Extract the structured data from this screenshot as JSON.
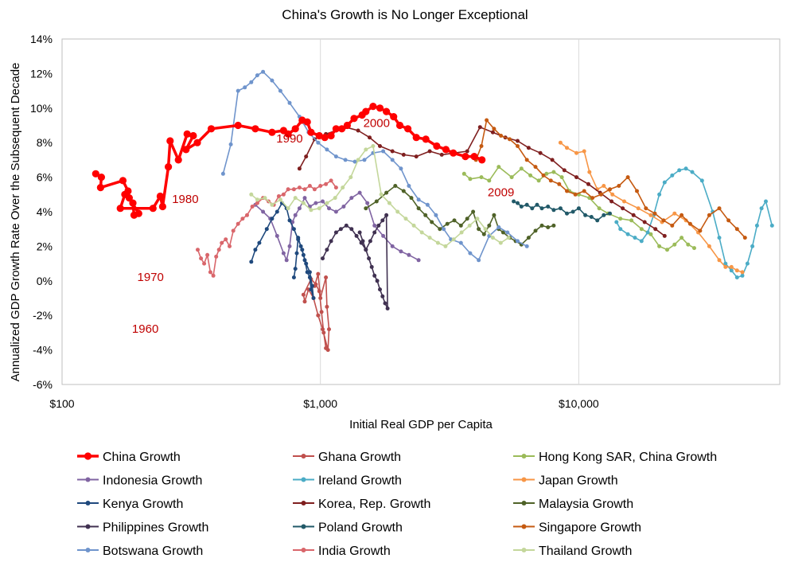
{
  "chart_data": {
    "type": "line",
    "title": "China's Growth is No Longer Exceptional",
    "xlabel": "Initial Real GDP per Capita",
    "ylabel": "Annualized GDP Growth Rate Over the Subsequent Decade",
    "x_scale": "log",
    "xlim": [
      100,
      60000
    ],
    "ylim": [
      -6,
      14
    ],
    "x_ticks": [
      {
        "value": 100,
        "label": "$100"
      },
      {
        "value": 1000,
        "label": "$1,000"
      },
      {
        "value": 10000,
        "label": "$10,000"
      }
    ],
    "y_ticks": [
      {
        "value": 14,
        "label": "14%"
      },
      {
        "value": 12,
        "label": "12%"
      },
      {
        "value": 10,
        "label": "10%"
      },
      {
        "value": 8,
        "label": "8%"
      },
      {
        "value": 6,
        "label": "6%"
      },
      {
        "value": 4,
        "label": "4%"
      },
      {
        "value": 2,
        "label": "2%"
      },
      {
        "value": 0,
        "label": "0%"
      },
      {
        "value": -2,
        "label": "-2%"
      },
      {
        "value": -4,
        "label": "-4%"
      },
      {
        "value": -6,
        "label": "-6%"
      }
    ],
    "grid": "vertical at x ticks",
    "legend_position": "bottom",
    "annotations": [
      {
        "text": "1960",
        "x": 210,
        "y": -3.0
      },
      {
        "text": "1970",
        "x": 220,
        "y": 0.0
      },
      {
        "text": "1980",
        "x": 300,
        "y": 4.5
      },
      {
        "text": "1990",
        "x": 760,
        "y": 8.0
      },
      {
        "text": "2000",
        "x": 1650,
        "y": 8.9
      },
      {
        "text": "2009",
        "x": 5000,
        "y": 4.9
      }
    ],
    "series": [
      {
        "name": "China Growth",
        "color": "#ff0000",
        "highlight": true,
        "x": [
          135,
          142,
          141,
          172,
          180,
          182,
          198,
          190,
          188,
          175,
          168,
          225,
          240,
          245,
          258,
          262,
          282,
          305,
          322,
          302,
          334,
          378,
          480,
          560,
          650,
          720,
          750,
          800,
          850,
          890,
          920,
          990,
          1040,
          1100,
          1150,
          1210,
          1270,
          1350,
          1450,
          1500,
          1600,
          1700,
          1800,
          1920,
          2030,
          2180,
          2350,
          2560,
          2820,
          3060,
          3270,
          3640,
          3940,
          4220
        ],
        "y": [
          6.2,
          6.0,
          5.4,
          5.8,
          5.2,
          4.8,
          3.9,
          3.8,
          4.5,
          5.0,
          4.2,
          4.2,
          4.9,
          4.3,
          6.6,
          8.1,
          7.0,
          8.5,
          8.4,
          7.6,
          8.0,
          8.8,
          9.0,
          8.8,
          8.6,
          8.7,
          8.5,
          8.8,
          9.3,
          9.2,
          8.6,
          8.4,
          8.3,
          8.4,
          8.8,
          8.8,
          9.0,
          9.4,
          9.6,
          9.8,
          10.1,
          10.0,
          9.8,
          9.5,
          9.0,
          8.8,
          8.3,
          8.2,
          7.8,
          7.6,
          7.4,
          7.2,
          7.2,
          7.0
        ]
      },
      {
        "name": "Ghana Growth",
        "color": "#c0504d",
        "x": [
          950,
          980,
          1000,
          1050,
          1060,
          1080,
          1070,
          1020,
          980,
          940,
          900,
          870,
          860,
          920,
          960,
          990,
          1010,
          1030,
          1050
        ],
        "y": [
          -0.3,
          0.4,
          -1.0,
          0.2,
          -1.5,
          -2.8,
          -4.0,
          -2.8,
          -2.0,
          -1.0,
          -0.5,
          -1.2,
          -0.8,
          0.1,
          -0.2,
          -0.6,
          -1.8,
          -3.0,
          -3.9
        ]
      },
      {
        "name": "Hong Kong SAR, China Growth",
        "color": "#9bbb59",
        "x": [
          3600,
          3800,
          4200,
          4500,
          4900,
          5500,
          6000,
          6500,
          7000,
          7500,
          8000,
          8600,
          9200,
          10000,
          11000,
          12000,
          13000,
          14500,
          16000,
          17500,
          19000,
          20500,
          22000,
          23500,
          25000,
          26500,
          28000
        ],
        "y": [
          6.2,
          5.9,
          6.0,
          5.8,
          6.6,
          6.0,
          6.5,
          6.1,
          5.8,
          6.2,
          6.3,
          6.0,
          5.2,
          5.0,
          4.8,
          4.2,
          3.9,
          3.6,
          3.5,
          3.0,
          2.7,
          2.0,
          1.8,
          2.1,
          2.5,
          2.1,
          1.9
        ]
      },
      {
        "name": "Indonesia Growth",
        "color": "#8064a2",
        "x": [
          560,
          600,
          640,
          680,
          720,
          740,
          760,
          780,
          800,
          830,
          870,
          910,
          960,
          1020,
          1080,
          1150,
          1230,
          1320,
          1420,
          1520,
          1620,
          1750,
          1900,
          2050,
          2200,
          2400
        ],
        "y": [
          4.4,
          4.0,
          3.6,
          2.6,
          1.6,
          1.2,
          2.0,
          3.4,
          3.8,
          4.2,
          4.8,
          4.3,
          4.5,
          4.6,
          4.2,
          4.0,
          4.3,
          4.8,
          5.1,
          4.5,
          3.2,
          2.6,
          2.0,
          1.7,
          1.5,
          1.2
        ]
      },
      {
        "name": "Ireland Growth",
        "color": "#4bacc6",
        "x": [
          14000,
          14500,
          15500,
          16500,
          17500,
          18500,
          19500,
          20500,
          21500,
          23000,
          24500,
          26000,
          27500,
          30000,
          33000,
          35000,
          37000,
          39000,
          41000,
          43000,
          45000,
          47000,
          49000,
          51000,
          53000,
          56000
        ],
        "y": [
          3.4,
          3.0,
          2.7,
          2.5,
          2.3,
          2.8,
          3.8,
          5.0,
          5.7,
          6.1,
          6.4,
          6.5,
          6.3,
          5.8,
          4.0,
          2.5,
          1.0,
          0.6,
          0.2,
          0.3,
          1.0,
          2.0,
          3.2,
          4.2,
          4.6,
          3.2
        ]
      },
      {
        "name": "Japan Growth",
        "color": "#f79646",
        "x": [
          8500,
          9000,
          9800,
          10500,
          11000,
          11800,
          12500,
          13500,
          15000,
          17000,
          19000,
          21000,
          23500,
          26000,
          29000,
          32000,
          35000,
          37000,
          39000,
          41000,
          43000
        ],
        "y": [
          8.0,
          7.7,
          7.4,
          7.5,
          6.3,
          5.3,
          5.5,
          5.0,
          4.6,
          4.2,
          3.8,
          3.4,
          3.9,
          3.5,
          2.8,
          2.0,
          1.2,
          0.8,
          0.8,
          0.6,
          0.5
        ]
      },
      {
        "name": "Kenya Growth",
        "color": "#1f497d",
        "x": [
          540,
          560,
          580,
          620,
          650,
          680,
          710,
          740,
          760,
          790,
          820,
          850,
          870,
          890,
          910,
          920,
          940,
          930,
          910,
          880,
          860,
          840,
          820,
          810,
          800,
          790
        ],
        "y": [
          1.1,
          1.8,
          2.2,
          3.0,
          3.6,
          4.0,
          4.5,
          4.2,
          3.5,
          3.0,
          2.4,
          1.8,
          1.2,
          0.5,
          0.2,
          -0.5,
          -1.0,
          -0.3,
          0.5,
          1.0,
          1.5,
          2.0,
          2.5,
          1.6,
          0.7,
          0.2
        ]
      },
      {
        "name": "Korea, Rep. Growth",
        "color": "#7f1f1f",
        "x": [
          830,
          880,
          950,
          1050,
          1150,
          1250,
          1400,
          1550,
          1700,
          1900,
          2100,
          2350,
          2650,
          2950,
          3300,
          3700,
          4150,
          4650,
          5200,
          5800,
          6400,
          7100,
          7900,
          8800,
          9800,
          10900,
          12100,
          13400,
          14800,
          16300,
          18000,
          19800,
          21500
        ],
        "y": [
          6.5,
          7.2,
          8.2,
          8.5,
          8.7,
          8.9,
          8.7,
          8.3,
          7.8,
          7.5,
          7.3,
          7.2,
          7.5,
          7.3,
          7.4,
          7.5,
          8.9,
          8.6,
          8.3,
          8.1,
          7.7,
          7.4,
          7.0,
          6.4,
          6.0,
          5.6,
          5.1,
          4.6,
          4.2,
          3.8,
          3.4,
          3.0,
          2.6
        ]
      },
      {
        "name": "Malaysia Growth",
        "color": "#4f6228",
        "x": [
          1500,
          1650,
          1800,
          1950,
          2100,
          2250,
          2400,
          2550,
          2700,
          2900,
          3100,
          3300,
          3500,
          3700,
          3900,
          4100,
          4300,
          4500,
          4700,
          4900,
          5100,
          5400,
          5700,
          6000,
          6400,
          6800,
          7200,
          7600,
          8000
        ],
        "y": [
          4.2,
          4.6,
          5.1,
          5.5,
          5.2,
          4.8,
          4.2,
          3.8,
          3.4,
          3.0,
          3.3,
          3.5,
          3.2,
          3.6,
          4.0,
          3.0,
          2.7,
          3.2,
          3.8,
          3.0,
          2.8,
          2.5,
          2.3,
          2.1,
          2.5,
          2.9,
          3.2,
          3.1,
          3.2
        ]
      },
      {
        "name": "Philippines Growth",
        "color": "#403151",
        "x": [
          1020,
          1060,
          1100,
          1150,
          1200,
          1260,
          1320,
          1380,
          1440,
          1500,
          1560,
          1620,
          1680,
          1740,
          1800,
          1820,
          1780,
          1740,
          1700,
          1660,
          1620,
          1580,
          1540,
          1500,
          1460,
          1420
        ],
        "y": [
          1.3,
          1.8,
          2.3,
          2.8,
          3.0,
          3.2,
          3.0,
          2.6,
          2.2,
          1.8,
          2.3,
          2.8,
          3.2,
          3.5,
          3.8,
          -1.6,
          -1.3,
          -0.9,
          -0.5,
          0.0,
          0.3,
          0.8,
          1.3,
          1.8,
          2.3,
          2.8
        ]
      },
      {
        "name": "Poland Growth",
        "color": "#215968",
        "x": [
          5600,
          5800,
          6000,
          6300,
          6600,
          6900,
          7200,
          7600,
          8000,
          8500,
          9000,
          9500,
          10000,
          10600,
          11200,
          11800,
          12500,
          13200
        ],
        "y": [
          4.6,
          4.5,
          4.3,
          4.4,
          4.2,
          4.4,
          4.2,
          4.3,
          4.1,
          4.2,
          3.9,
          4.0,
          4.2,
          3.8,
          3.7,
          3.5,
          3.8,
          3.9
        ]
      },
      {
        "name": "Singapore Growth",
        "color": "#c55a11",
        "x": [
          4000,
          4200,
          4400,
          4700,
          5000,
          5400,
          5800,
          6300,
          6800,
          7300,
          7800,
          8400,
          9000,
          9700,
          10500,
          11300,
          12200,
          13200,
          14300,
          15500,
          16800,
          18200,
          19700,
          21300,
          23000,
          25000,
          27000,
          29500,
          32000,
          35000,
          38000,
          41000,
          44000
        ],
        "y": [
          7.0,
          7.8,
          9.3,
          8.8,
          8.4,
          8.2,
          7.8,
          7.0,
          6.6,
          6.1,
          5.8,
          5.6,
          5.2,
          5.0,
          5.2,
          4.8,
          5.0,
          5.3,
          5.5,
          6.0,
          5.2,
          4.2,
          3.9,
          3.5,
          3.2,
          3.8,
          3.3,
          2.9,
          3.8,
          4.2,
          3.5,
          3.0,
          2.5
        ]
      },
      {
        "name": "Botswana Growth",
        "color": "#6f94cc",
        "x": [
          420,
          450,
          480,
          510,
          540,
          570,
          600,
          650,
          700,
          760,
          830,
          900,
          980,
          1060,
          1150,
          1250,
          1360,
          1480,
          1600,
          1750,
          1900,
          2050,
          2200,
          2400,
          2600,
          2800,
          3000,
          3200,
          3500,
          3800,
          4100,
          4500,
          4900,
          5300,
          5800,
          6300
        ],
        "y": [
          6.2,
          7.9,
          11.0,
          11.2,
          11.5,
          11.9,
          12.1,
          11.6,
          11.0,
          10.3,
          9.5,
          8.6,
          8.0,
          7.6,
          7.2,
          7.0,
          6.9,
          7.0,
          7.4,
          7.5,
          7.0,
          6.5,
          5.5,
          4.7,
          4.4,
          3.8,
          3.0,
          2.4,
          2.2,
          1.6,
          1.2,
          2.6,
          3.1,
          2.8,
          2.3,
          2.0
        ]
      },
      {
        "name": "India Growth",
        "color": "#d9666b",
        "x": [
          335,
          345,
          355,
          365,
          375,
          385,
          395,
          405,
          415,
          430,
          445,
          460,
          480,
          500,
          520,
          545,
          570,
          600,
          630,
          660,
          690,
          720,
          750,
          790,
          830,
          870,
          910,
          950,
          1000,
          1050,
          1100,
          1150
        ],
        "y": [
          1.8,
          1.3,
          1.0,
          1.5,
          0.5,
          0.3,
          1.4,
          1.8,
          2.2,
          2.4,
          2.0,
          2.9,
          3.3,
          3.6,
          3.8,
          4.3,
          4.5,
          4.8,
          4.6,
          4.4,
          4.9,
          5.0,
          5.3,
          5.3,
          5.4,
          5.3,
          5.5,
          5.3,
          5.5,
          5.6,
          5.8,
          5.4
        ]
      },
      {
        "name": "Thailand Growth",
        "color": "#c4d79b",
        "x": [
          540,
          570,
          610,
          650,
          700,
          750,
          800,
          860,
          920,
          990,
          1060,
          1140,
          1220,
          1310,
          1400,
          1500,
          1600,
          1720,
          1850,
          1990,
          2140,
          2300,
          2470,
          2650,
          2850,
          3050,
          3280,
          3520,
          3780,
          4050,
          4350,
          4650,
          4990,
          5350
        ],
        "y": [
          5.0,
          4.7,
          4.8,
          4.4,
          4.7,
          4.2,
          4.8,
          4.5,
          4.1,
          4.2,
          4.5,
          4.8,
          5.4,
          6.0,
          7.0,
          7.6,
          7.8,
          5.0,
          4.5,
          4.0,
          3.6,
          3.2,
          2.8,
          2.5,
          2.2,
          2.0,
          2.4,
          2.8,
          3.2,
          3.6,
          3.0,
          2.5,
          2.2,
          2.5
        ]
      }
    ]
  }
}
